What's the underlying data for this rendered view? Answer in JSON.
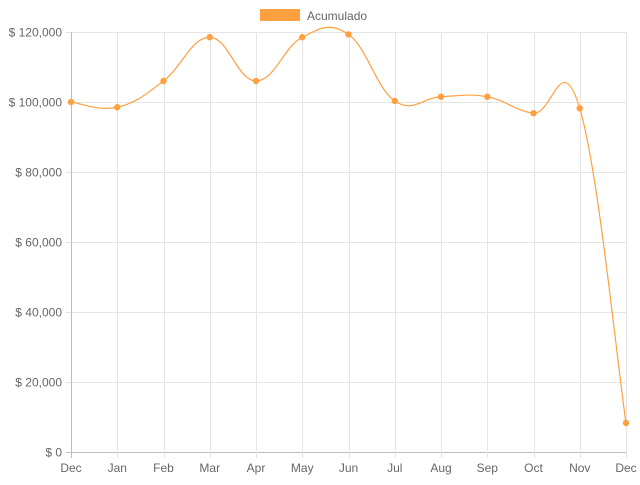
{
  "chart_data": {
    "type": "line",
    "categories": [
      "Dec",
      "Jan",
      "Feb",
      "Mar",
      "Apr",
      "May",
      "Jun",
      "Jul",
      "Aug",
      "Sep",
      "Oct",
      "Nov",
      "Dec"
    ],
    "series": [
      {
        "name": "Acumulado",
        "color": "#ffa040",
        "values": [
          100000,
          98500,
          106000,
          118500,
          106000,
          118500,
          119300,
          100300,
          101500,
          101500,
          96800,
          98200,
          8300
        ]
      }
    ],
    "yticks": [
      0,
      20000,
      40000,
      60000,
      80000,
      100000,
      120000
    ],
    "ytick_labels": [
      "$ 0",
      "$ 20,000",
      "$ 40,000",
      "$ 60,000",
      "$ 80,000",
      "$ 100,000",
      "$ 120,000"
    ],
    "ylim": [
      0,
      120000
    ],
    "grid": true,
    "legend": "top-center",
    "title": "",
    "xlabel": "",
    "ylabel": ""
  }
}
